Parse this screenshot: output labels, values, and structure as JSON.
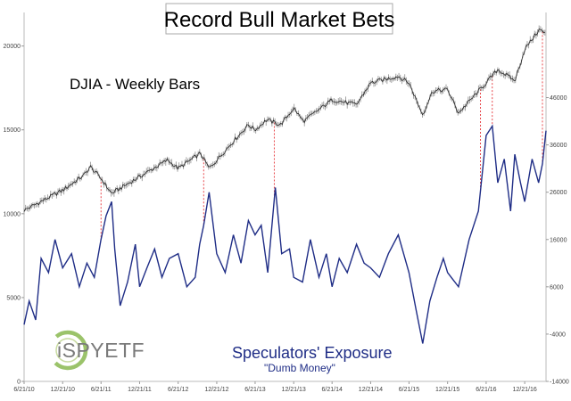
{
  "chart_data": {
    "type": "line",
    "title": "Record Bull Market Bets",
    "annotations": [
      "DJIA - Weekly Bars",
      "Speculators' Exposure",
      "\"Dumb Money\""
    ],
    "logo_text": "iSPYETF",
    "x": [
      "6/21/10",
      "12/21/10",
      "6/21/11",
      "12/21/11",
      "6/21/12",
      "12/21/12",
      "6/21/13",
      "12/21/13",
      "6/21/14",
      "12/21/14",
      "6/21/15",
      "12/21/15",
      "6/21/16",
      "12/21/16"
    ],
    "xlim": [
      "6/21/10",
      "4/1/17"
    ],
    "left_axis": {
      "ticks": [
        0,
        5000,
        10000,
        15000,
        20000
      ],
      "range": [
        0,
        22000
      ]
    },
    "right_axis": {
      "ticks": [
        -14000,
        -4000,
        6000,
        16000,
        26000,
        36000,
        46000
      ],
      "range": [
        -14000,
        64000
      ]
    },
    "grid": false,
    "colors": {
      "djia": "#222222",
      "djia_range": "#9a9a9a",
      "exposure": "#1f2d86",
      "marker": "#e8464a",
      "title_border": "#aaaaaa"
    },
    "series": [
      {
        "name": "DJIA - Weekly Bars",
        "axis": "left",
        "x": [
          "6/21/10",
          "12/21/10",
          "4/1/11",
          "5/1/11",
          "6/21/11",
          "8/10/11",
          "10/1/11",
          "12/21/11",
          "5/1/12",
          "6/21/12",
          "10/5/12",
          "11/15/12",
          "12/21/12",
          "3/1/13",
          "5/20/13",
          "6/21/13",
          "8/15/13",
          "10/20/13",
          "12/21/13",
          "2/5/14",
          "6/21/14",
          "10/15/14",
          "12/21/14",
          "5/1/15",
          "6/21/15",
          "8/25/15",
          "10/10/15",
          "12/21/15",
          "2/11/16",
          "6/21/16",
          "8/15/16",
          "10/15/16",
          "11/4/16",
          "12/21/16",
          "3/1/17",
          "4/1/17"
        ],
        "values": [
          10200,
          11400,
          12300,
          12800,
          12100,
          11200,
          11600,
          12200,
          13200,
          12700,
          13600,
          12700,
          13200,
          14200,
          15300,
          15000,
          15600,
          15300,
          16300,
          15500,
          16800,
          16500,
          17800,
          18200,
          17800,
          15900,
          17300,
          17400,
          16000,
          17800,
          18600,
          18100,
          17900,
          19800,
          21000,
          20700
        ]
      },
      {
        "name": "Speculators' Exposure",
        "axis": "right",
        "x": [
          "6/21/10",
          "7/15/10",
          "8/15/10",
          "9/10/10",
          "10/15/10",
          "11/15/10",
          "12/21/10",
          "2/1/11",
          "3/10/11",
          "4/15/11",
          "5/20/11",
          "6/21/11",
          "7/15/11",
          "8/10/11",
          "8/25/11",
          "9/20/11",
          "10/25/11",
          "12/1/11",
          "12/21/11",
          "1/25/12",
          "3/1/12",
          "4/5/12",
          "5/10/12",
          "6/21/12",
          "8/1/12",
          "9/10/12",
          "10/1/12",
          "10/20/12",
          "11/15/12",
          "12/21/12",
          "1/30/13",
          "3/10/13",
          "4/15/13",
          "5/20/13",
          "6/21/13",
          "7/20/13",
          "8/20/13",
          "9/25/13",
          "10/25/13",
          "12/1/13",
          "12/21/13",
          "2/1/14",
          "3/10/14",
          "4/20/14",
          "5/25/14",
          "6/21/14",
          "7/25/14",
          "9/1/14",
          "10/15/14",
          "11/20/14",
          "12/21/14",
          "2/1/15",
          "3/15/15",
          "5/1/15",
          "6/21/15",
          "7/25/15",
          "8/25/15",
          "9/28/15",
          "11/1/15",
          "12/1/15",
          "12/21/15",
          "2/11/16",
          "4/1/16",
          "5/15/16",
          "6/21/16",
          "7/20/16",
          "8/15/16",
          "9/15/16",
          "10/15/16",
          "11/4/16",
          "12/1/16",
          "12/21/16",
          "1/25/17",
          "2/25/17",
          "3/15/17",
          "4/1/17"
        ],
        "values": [
          -2000,
          3000,
          -1000,
          12000,
          9000,
          16000,
          10000,
          13000,
          6000,
          11000,
          8000,
          16000,
          21000,
          24000,
          14000,
          2000,
          7000,
          15000,
          6000,
          10000,
          14000,
          8000,
          12000,
          13000,
          6000,
          8000,
          15000,
          19000,
          26000,
          13000,
          9000,
          17000,
          11000,
          20000,
          17000,
          19000,
          9000,
          27000,
          13000,
          14000,
          8000,
          7000,
          16000,
          8000,
          13000,
          6000,
          12000,
          9000,
          15000,
          11000,
          10000,
          8000,
          13000,
          17000,
          9000,
          1000,
          -6000,
          3000,
          8000,
          12000,
          9000,
          6000,
          16000,
          22000,
          38000,
          40000,
          28000,
          33000,
          22000,
          34000,
          28000,
          24000,
          33000,
          28000,
          32000,
          39000
        ]
      }
    ],
    "highlight_dates": [
      "6/21/11",
      "10/20/12",
      "9/20/13",
      "5/25/16",
      "7/20/16",
      "3/15/17"
    ]
  }
}
